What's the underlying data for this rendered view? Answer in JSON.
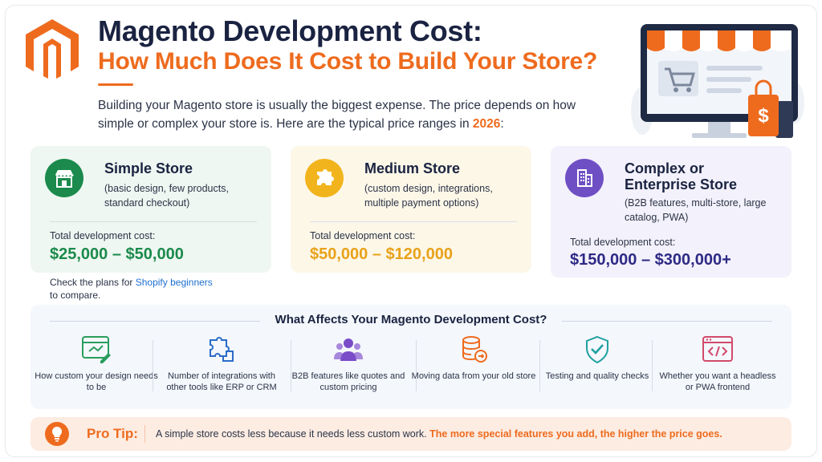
{
  "header": {
    "title_line1": "Magento Development Cost:",
    "title_line2": "How Much Does It Cost to Build Your Store?",
    "intro_text": "Building your Magento store is usually the biggest expense. The price depends on how simple or complex your store is. Here are the typical price ranges in ",
    "intro_year": "2026",
    "intro_end": ":"
  },
  "colors": {
    "brand_orange": "#ee6b1e",
    "navy": "#1a2341",
    "simple_green": "#1b8a4c",
    "medium_gold": "#e8a21a",
    "complex_purple": "#2e2a86"
  },
  "cards": [
    {
      "name": "Simple Store",
      "desc": "(basic design, few products, standard checkout)",
      "total_label": "Total development cost:",
      "price": "$25,000 – $50,000",
      "icon": "storefront-icon"
    },
    {
      "name": "Medium Store",
      "desc": "(custom design, integrations, multiple payment options)",
      "total_label": "Total development cost:",
      "price": "$50,000 – $120,000",
      "icon": "puzzle-icon"
    },
    {
      "name_line1": "Complex or",
      "name_line2": "Enterprise Store",
      "desc": "(B2B features, multi-store, large catalog, PWA)",
      "total_label": "Total development cost:",
      "price": "$150,000 – $300,000+",
      "icon": "building-icon"
    }
  ],
  "shopify_note": {
    "prefix": "Check the plans for ",
    "link": "Shopify beginners",
    "suffix": "to compare."
  },
  "factors": {
    "heading": "What Affects Your Magento Development Cost?",
    "items": [
      {
        "text": "How custom your design needs to be",
        "icon": "design-edit-icon"
      },
      {
        "text": "Number of integrations with other tools like ERP or CRM",
        "icon": "integrations-puzzle-icon"
      },
      {
        "text": "B2B features like quotes and custom pricing",
        "icon": "users-group-icon"
      },
      {
        "text": "Moving data from your old store",
        "icon": "database-migration-icon"
      },
      {
        "text": "Testing and quality checks",
        "icon": "shield-check-icon"
      },
      {
        "text": "Whether you want a headless or PWA frontend",
        "icon": "code-window-icon"
      }
    ]
  },
  "pro_tip": {
    "label": "Pro Tip:",
    "text": "A simple store costs less because it needs less custom work. ",
    "highlight": "The more special features you add, the higher the price goes.",
    "icon": "lightbulb-icon"
  }
}
